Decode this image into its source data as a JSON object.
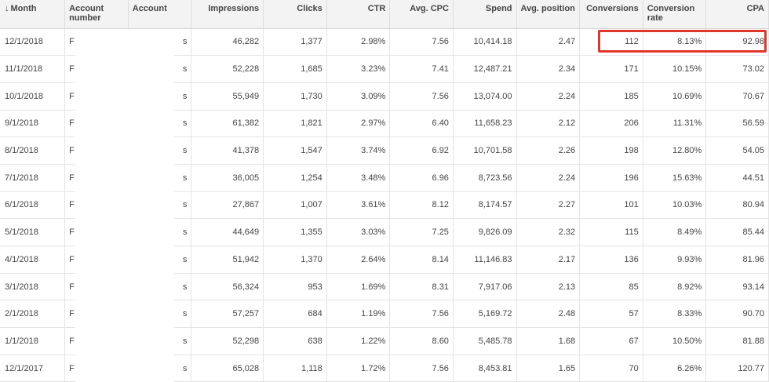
{
  "headers": {
    "month": "Month",
    "account_number": "Account number",
    "account": "Account",
    "impressions": "Impressions",
    "clicks": "Clicks",
    "ctr": "CTR",
    "avg_cpc": "Avg. CPC",
    "spend": "Spend",
    "avg_position": "Avg. position",
    "conversions": "Conversions",
    "conversion_rate": "Conversion rate",
    "cpa": "CPA"
  },
  "sort": {
    "column": "month",
    "direction": "descending",
    "indicator": "↓"
  },
  "rows": [
    {
      "month": "12/1/2018",
      "account_number": "F",
      "account": "s",
      "impressions": "46,282",
      "clicks": "1,377",
      "ctr": "2.98%",
      "avg_cpc": "7.56",
      "spend": "10,414.18",
      "avg_position": "2.47",
      "conversions": "112",
      "conversion_rate": "8.13%",
      "cpa": "92.98"
    },
    {
      "month": "11/1/2018",
      "account_number": "F",
      "account": "s",
      "impressions": "52,228",
      "clicks": "1,685",
      "ctr": "3.23%",
      "avg_cpc": "7.41",
      "spend": "12,487.21",
      "avg_position": "2.34",
      "conversions": "171",
      "conversion_rate": "10.15%",
      "cpa": "73.02"
    },
    {
      "month": "10/1/2018",
      "account_number": "F",
      "account": "s",
      "impressions": "55,949",
      "clicks": "1,730",
      "ctr": "3.09%",
      "avg_cpc": "7.56",
      "spend": "13,074.00",
      "avg_position": "2.24",
      "conversions": "185",
      "conversion_rate": "10.69%",
      "cpa": "70.67"
    },
    {
      "month": "9/1/2018",
      "account_number": "F",
      "account": "s",
      "impressions": "61,382",
      "clicks": "1,821",
      "ctr": "2.97%",
      "avg_cpc": "6.40",
      "spend": "11,658.23",
      "avg_position": "2.12",
      "conversions": "206",
      "conversion_rate": "11.31%",
      "cpa": "56.59"
    },
    {
      "month": "8/1/2018",
      "account_number": "F",
      "account": "s",
      "impressions": "41,378",
      "clicks": "1,547",
      "ctr": "3.74%",
      "avg_cpc": "6.92",
      "spend": "10,701.58",
      "avg_position": "2.26",
      "conversions": "198",
      "conversion_rate": "12.80%",
      "cpa": "54.05"
    },
    {
      "month": "7/1/2018",
      "account_number": "F",
      "account": "s",
      "impressions": "36,005",
      "clicks": "1,254",
      "ctr": "3.48%",
      "avg_cpc": "6.96",
      "spend": "8,723.56",
      "avg_position": "2.24",
      "conversions": "196",
      "conversion_rate": "15.63%",
      "cpa": "44.51"
    },
    {
      "month": "6/1/2018",
      "account_number": "F",
      "account": "s",
      "impressions": "27,867",
      "clicks": "1,007",
      "ctr": "3.61%",
      "avg_cpc": "8.12",
      "spend": "8,174.57",
      "avg_position": "2.27",
      "conversions": "101",
      "conversion_rate": "10.03%",
      "cpa": "80.94"
    },
    {
      "month": "5/1/2018",
      "account_number": "F",
      "account": "s",
      "impressions": "44,649",
      "clicks": "1,355",
      "ctr": "3.03%",
      "avg_cpc": "7.25",
      "spend": "9,826.09",
      "avg_position": "2.32",
      "conversions": "115",
      "conversion_rate": "8.49%",
      "cpa": "85.44"
    },
    {
      "month": "4/1/2018",
      "account_number": "F",
      "account": "s",
      "impressions": "51,942",
      "clicks": "1,370",
      "ctr": "2.64%",
      "avg_cpc": "8.14",
      "spend": "11,146.83",
      "avg_position": "2.17",
      "conversions": "136",
      "conversion_rate": "9.93%",
      "cpa": "81.96"
    },
    {
      "month": "3/1/2018",
      "account_number": "F",
      "account": "s",
      "impressions": "56,324",
      "clicks": "953",
      "ctr": "1.69%",
      "avg_cpc": "8.31",
      "spend": "7,917.06",
      "avg_position": "2.13",
      "conversions": "85",
      "conversion_rate": "8.92%",
      "cpa": "93.14"
    },
    {
      "month": "2/1/2018",
      "account_number": "F",
      "account": "s",
      "impressions": "57,257",
      "clicks": "684",
      "ctr": "1.19%",
      "avg_cpc": "7.56",
      "spend": "5,169.72",
      "avg_position": "2.48",
      "conversions": "57",
      "conversion_rate": "8.33%",
      "cpa": "90.70"
    },
    {
      "month": "1/1/2018",
      "account_number": "F",
      "account": "s",
      "impressions": "52,298",
      "clicks": "638",
      "ctr": "1.22%",
      "avg_cpc": "8.60",
      "spend": "5,485.78",
      "avg_position": "1.68",
      "conversions": "67",
      "conversion_rate": "10.50%",
      "cpa": "81.88"
    },
    {
      "month": "12/1/2017",
      "account_number": "F",
      "account": "s",
      "impressions": "65,028",
      "clicks": "1,118",
      "ctr": "1.72%",
      "avg_cpc": "7.56",
      "spend": "8,453.81",
      "avg_position": "1.65",
      "conversions": "70",
      "conversion_rate": "6.26%",
      "cpa": "120.77"
    }
  ],
  "colors": {
    "highlight": "#e0372a",
    "header_bg": "#f3f3f3",
    "grid": "#e4e4e4"
  }
}
